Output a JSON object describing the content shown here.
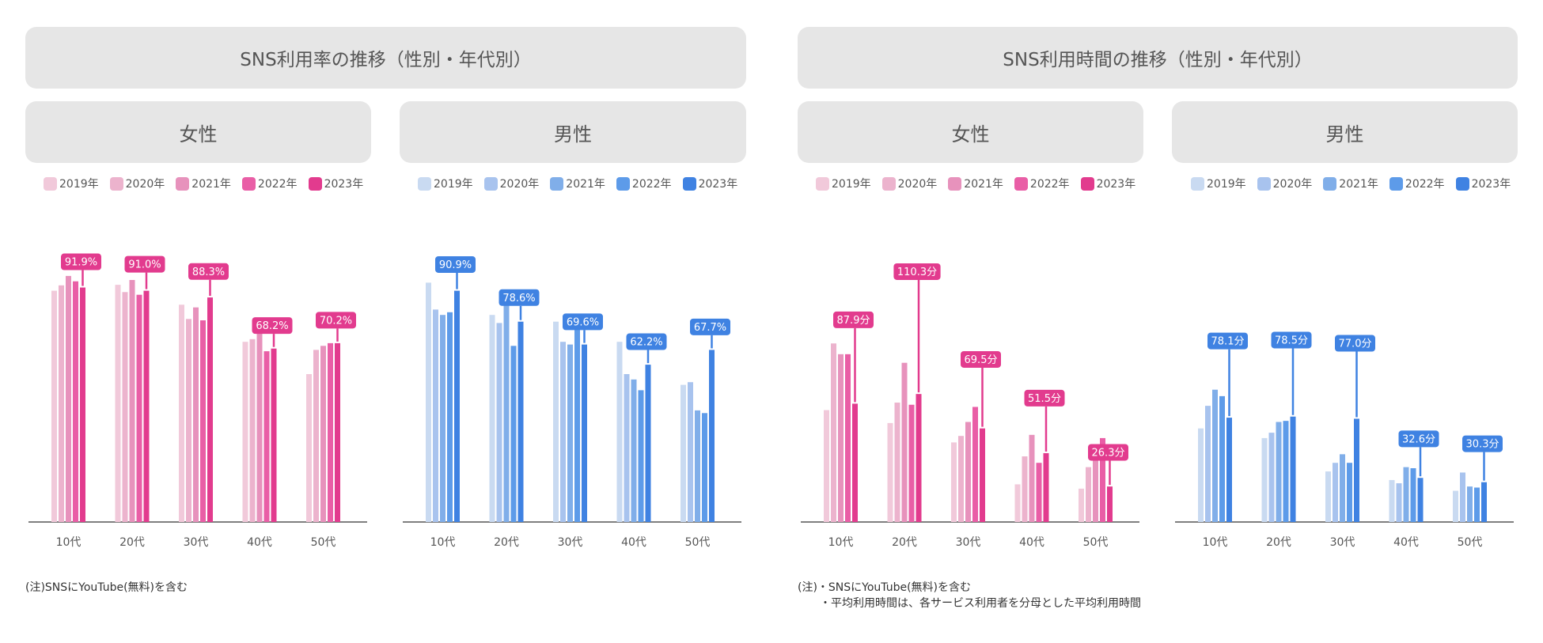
{
  "titles": {
    "rate": "SNS利用率の推移（性別・年代別）",
    "time": "SNS利用時間の推移（性別・年代別）"
  },
  "notes": {
    "rate": "(注)SNSにYouTube(無料)を含む",
    "time_line1": "(注)・SNSにYouTube(無料)を含む",
    "time_line2": "・平均利用時間は、各サービス利用者を分母とした平均利用時間"
  },
  "colors": {
    "female": [
      "#f1c9da",
      "#ecb3cd",
      "#e792bc",
      "#e95ea6",
      "#e23b8e"
    ],
    "male": [
      "#c9daf1",
      "#a8c3ee",
      "#80aee9",
      "#5d9be9",
      "#3f82e2"
    ]
  },
  "chart_data": [
    {
      "type": "bar",
      "title": "SNS利用率の推移（性別・年代別）",
      "subtitle": "女性",
      "gender": "female",
      "categories": [
        "10代",
        "20代",
        "30代",
        "40代",
        "50代"
      ],
      "ylim": [
        0,
        100
      ],
      "unit": "%",
      "series": [
        {
          "name": "2019年",
          "values": [
            86.0,
            88.2,
            80.8,
            67.0,
            55.0
          ]
        },
        {
          "name": "2020年",
          "values": [
            88.0,
            85.5,
            75.5,
            68.0,
            64.0
          ]
        },
        {
          "name": "2021年",
          "values": [
            91.5,
            90.0,
            79.8,
            71.0,
            65.5
          ]
        },
        {
          "name": "2022年",
          "values": [
            89.5,
            84.5,
            75.0,
            63.5,
            66.5
          ]
        },
        {
          "name": "2023年",
          "values": [
            87.2,
            86.0,
            83.5,
            64.5,
            66.5
          ]
        }
      ],
      "callouts": [
        "91.9",
        "91.0",
        "88.3",
        "68.2",
        "70.2"
      ]
    },
    {
      "type": "bar",
      "title": "SNS利用率の推移（性別・年代別）",
      "subtitle": "男性",
      "gender": "male",
      "categories": [
        "10代",
        "20代",
        "30代",
        "40代",
        "50代"
      ],
      "ylim": [
        0,
        100
      ],
      "unit": "%",
      "series": [
        {
          "name": "2019年",
          "values": [
            89.0,
            77.0,
            74.5,
            67.0,
            51.0
          ]
        },
        {
          "name": "2020年",
          "values": [
            79.0,
            74.0,
            67.0,
            55.0,
            52.0
          ]
        },
        {
          "name": "2021年",
          "values": [
            77.0,
            80.5,
            66.0,
            53.0,
            41.5
          ]
        },
        {
          "name": "2022年",
          "values": [
            78.0,
            65.5,
            74.0,
            49.0,
            40.5
          ]
        },
        {
          "name": "2023年",
          "values": [
            86.0,
            74.5,
            66.0,
            58.5,
            64.0
          ]
        }
      ],
      "callouts": [
        "90.9",
        "78.6",
        "69.6",
        "62.2",
        "67.7"
      ]
    },
    {
      "type": "bar",
      "title": "SNS利用時間の推移（性別・年代別）",
      "subtitle": "女性",
      "gender": "female",
      "categories": [
        "10代",
        "20代",
        "30代",
        "40代",
        "50代"
      ],
      "ylim": [
        0,
        125
      ],
      "unit": "分",
      "series": [
        {
          "name": "2019年",
          "values": [
            52.0,
            46.0,
            37.0,
            17.5,
            15.5
          ]
        },
        {
          "name": "2020年",
          "values": [
            83.0,
            55.5,
            40.0,
            30.5,
            25.5
          ]
        },
        {
          "name": "2021年",
          "values": [
            78.0,
            74.0,
            46.5,
            40.5,
            32.5
          ]
        },
        {
          "name": "2022年",
          "values": [
            78.0,
            54.5,
            53.5,
            27.5,
            39.0
          ]
        },
        {
          "name": "2023年",
          "values": [
            55.0,
            59.5,
            43.5,
            32.0,
            16.5
          ]
        }
      ],
      "callouts": [
        "87.9",
        "110.3",
        "69.5",
        "51.5",
        "26.3"
      ]
    },
    {
      "type": "bar",
      "title": "SNS利用時間の推移（性別・年代別）",
      "subtitle": "男性",
      "gender": "male",
      "categories": [
        "10代",
        "20代",
        "30代",
        "40代",
        "50代"
      ],
      "ylim": [
        0,
        125
      ],
      "unit": "分",
      "series": [
        {
          "name": "2019年",
          "values": [
            43.5,
            39.0,
            23.5,
            19.5,
            14.5
          ]
        },
        {
          "name": "2020年",
          "values": [
            54.0,
            41.5,
            27.5,
            18.0,
            23.0
          ]
        },
        {
          "name": "2021年",
          "values": [
            61.5,
            46.5,
            31.5,
            25.5,
            16.5
          ]
        },
        {
          "name": "2022年",
          "values": [
            58.5,
            47.0,
            27.5,
            25.0,
            16.0
          ]
        },
        {
          "name": "2023年",
          "values": [
            48.5,
            49.0,
            48.0,
            20.5,
            18.5
          ]
        }
      ],
      "callouts": [
        "78.1",
        "78.5",
        "77.0",
        "32.6",
        "30.3"
      ]
    }
  ]
}
